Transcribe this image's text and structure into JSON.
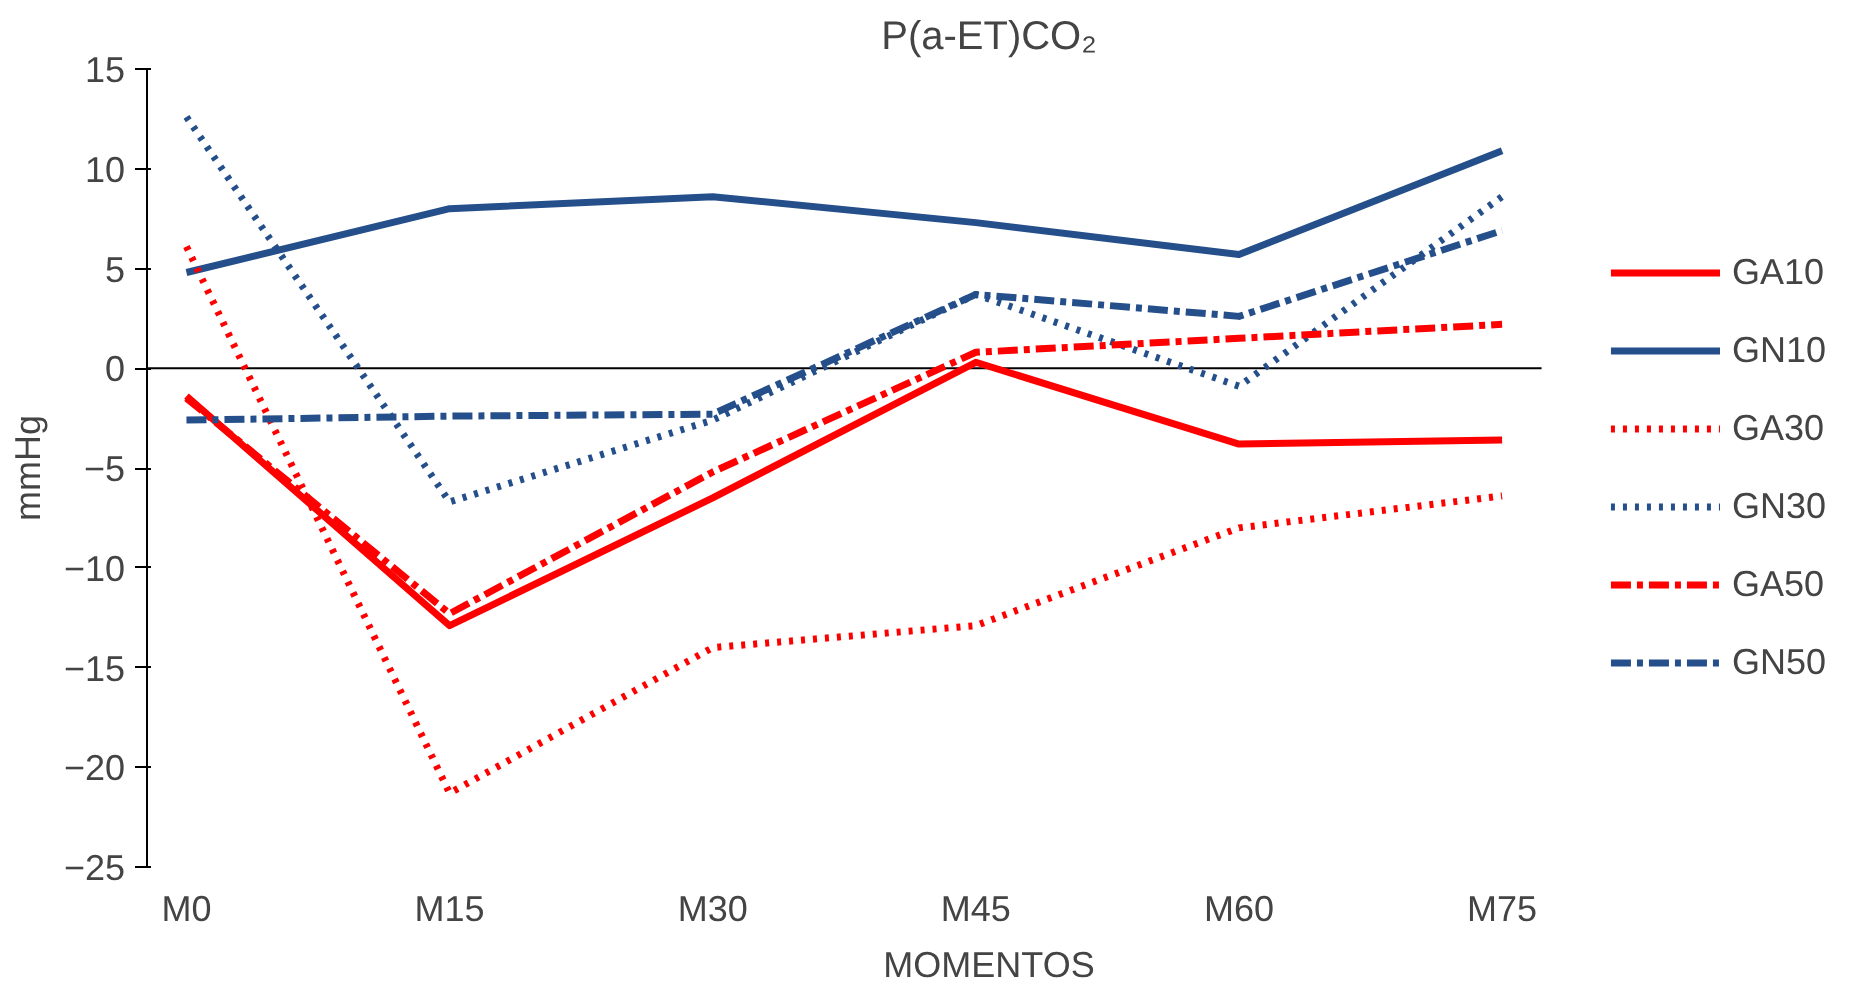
{
  "chart_data": {
    "type": "line",
    "title": "P(a-ET)CO₂",
    "xlabel": "MOMENTOS",
    "ylabel": "mmHg",
    "categories": [
      "M0",
      "M15",
      "M30",
      "M45",
      "M60",
      "M75"
    ],
    "ylim": [
      -25,
      15
    ],
    "yticks": [
      -25,
      -20,
      -15,
      -10,
      -5,
      0,
      5,
      10,
      15
    ],
    "grid": false,
    "ref_lines": [
      {
        "axis": "y",
        "value": 0,
        "color": "#000000"
      }
    ],
    "legend": "right",
    "marker": "none",
    "series": [
      {
        "name": "GA10",
        "color": "#ff0000",
        "line_style": "solid",
        "values": [
          -1.4,
          -12.9,
          -6.5,
          0.3,
          -3.8,
          -3.6
        ]
      },
      {
        "name": "GN10",
        "color": "#254f8a",
        "line_style": "solid",
        "values": [
          4.8,
          8.0,
          8.6,
          7.3,
          5.7,
          10.9
        ]
      },
      {
        "name": "GA30",
        "color": "#ff0000",
        "line_style": "dotted",
        "values": [
          6.1,
          -21.3,
          -14.0,
          -12.9,
          -8.0,
          -6.4
        ]
      },
      {
        "name": "GN30",
        "color": "#254f8a",
        "line_style": "dotted",
        "values": [
          12.6,
          -6.7,
          -2.6,
          3.7,
          -0.9,
          8.6
        ]
      },
      {
        "name": "GA50",
        "color": "#ff0000",
        "line_style": "dashdot",
        "values": [
          -1.5,
          -12.3,
          -5.2,
          0.8,
          1.5,
          2.2
        ]
      },
      {
        "name": "GN50",
        "color": "#254f8a",
        "line_style": "dashdot",
        "values": [
          -2.6,
          -2.4,
          -2.3,
          3.7,
          2.6,
          6.9
        ]
      }
    ]
  }
}
